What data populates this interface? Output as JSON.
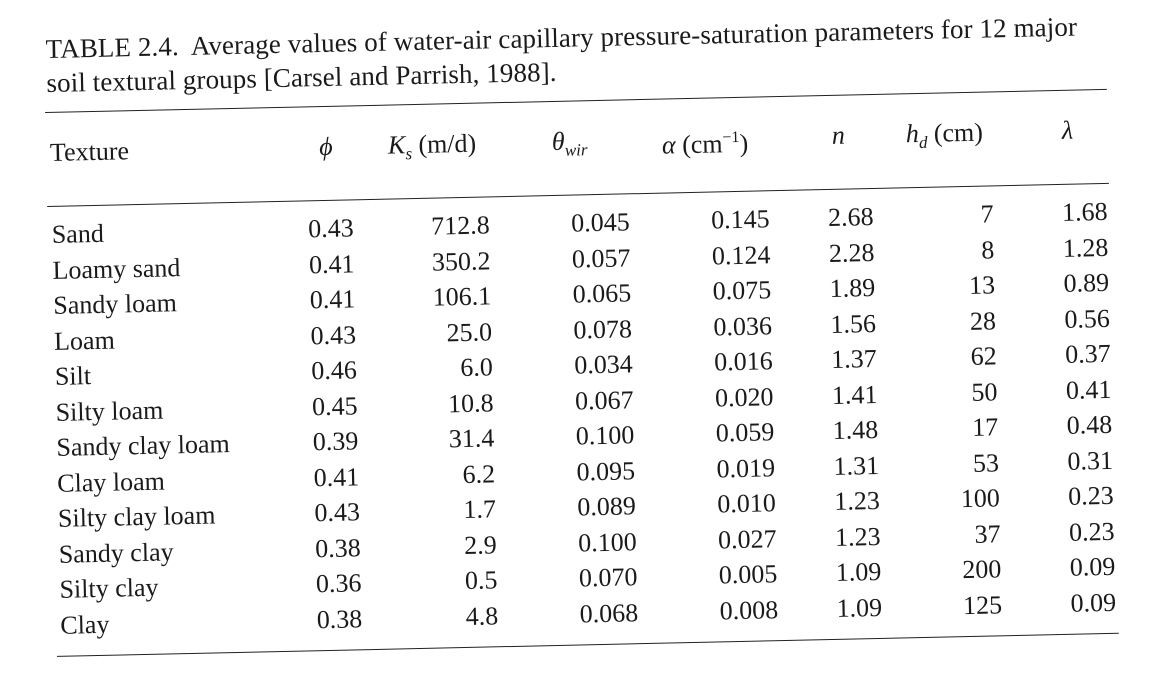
{
  "caption": {
    "label": "TABLE 2.4.",
    "text": "Average values of water-air capillary pressure-saturation parameters for 12 major soil textural groups [Carsel and Parrish, 1988]."
  },
  "headers": {
    "texture": "Texture",
    "phi": "ϕ",
    "ks_sym": "K",
    "ks_sub": "s",
    "ks_unit": " (m/d)",
    "theta_sym": "θ",
    "theta_sub": "wir",
    "alpha_sym": "α",
    "alpha_unit_pre": " (cm",
    "alpha_unit_sup": "−1",
    "alpha_unit_post": ")",
    "n": "n",
    "hd_sym": "h",
    "hd_sub": "d",
    "hd_unit": " (cm)",
    "lambda": "λ"
  },
  "rows": [
    {
      "texture": "Sand",
      "phi": "0.43",
      "ks": "712.8",
      "theta": "0.045",
      "alpha": "0.145",
      "n": "2.68",
      "hd": "7",
      "lambda": "1.68"
    },
    {
      "texture": "Loamy sand",
      "phi": "0.41",
      "ks": "350.2",
      "theta": "0.057",
      "alpha": "0.124",
      "n": "2.28",
      "hd": "8",
      "lambda": "1.28"
    },
    {
      "texture": "Sandy loam",
      "phi": "0.41",
      "ks": "106.1",
      "theta": "0.065",
      "alpha": "0.075",
      "n": "1.89",
      "hd": "13",
      "lambda": "0.89"
    },
    {
      "texture": "Loam",
      "phi": "0.43",
      "ks": "25.0",
      "theta": "0.078",
      "alpha": "0.036",
      "n": "1.56",
      "hd": "28",
      "lambda": "0.56"
    },
    {
      "texture": "Silt",
      "phi": "0.46",
      "ks": "6.0",
      "theta": "0.034",
      "alpha": "0.016",
      "n": "1.37",
      "hd": "62",
      "lambda": "0.37"
    },
    {
      "texture": "Silty loam",
      "phi": "0.45",
      "ks": "10.8",
      "theta": "0.067",
      "alpha": "0.020",
      "n": "1.41",
      "hd": "50",
      "lambda": "0.41"
    },
    {
      "texture": "Sandy clay loam",
      "phi": "0.39",
      "ks": "31.4",
      "theta": "0.100",
      "alpha": "0.059",
      "n": "1.48",
      "hd": "17",
      "lambda": "0.48"
    },
    {
      "texture": "Clay loam",
      "phi": "0.41",
      "ks": "6.2",
      "theta": "0.095",
      "alpha": "0.019",
      "n": "1.31",
      "hd": "53",
      "lambda": "0.31"
    },
    {
      "texture": "Silty clay loam",
      "phi": "0.43",
      "ks": "1.7",
      "theta": "0.089",
      "alpha": "0.010",
      "n": "1.23",
      "hd": "100",
      "lambda": "0.23"
    },
    {
      "texture": "Sandy clay",
      "phi": "0.38",
      "ks": "2.9",
      "theta": "0.100",
      "alpha": "0.027",
      "n": "1.23",
      "hd": "37",
      "lambda": "0.23"
    },
    {
      "texture": "Silty clay",
      "phi": "0.36",
      "ks": "0.5",
      "theta": "0.070",
      "alpha": "0.005",
      "n": "1.09",
      "hd": "200",
      "lambda": "0.09"
    },
    {
      "texture": "Clay",
      "phi": "0.38",
      "ks": "4.8",
      "theta": "0.068",
      "alpha": "0.008",
      "n": "1.09",
      "hd": "125",
      "lambda": "0.09"
    }
  ]
}
